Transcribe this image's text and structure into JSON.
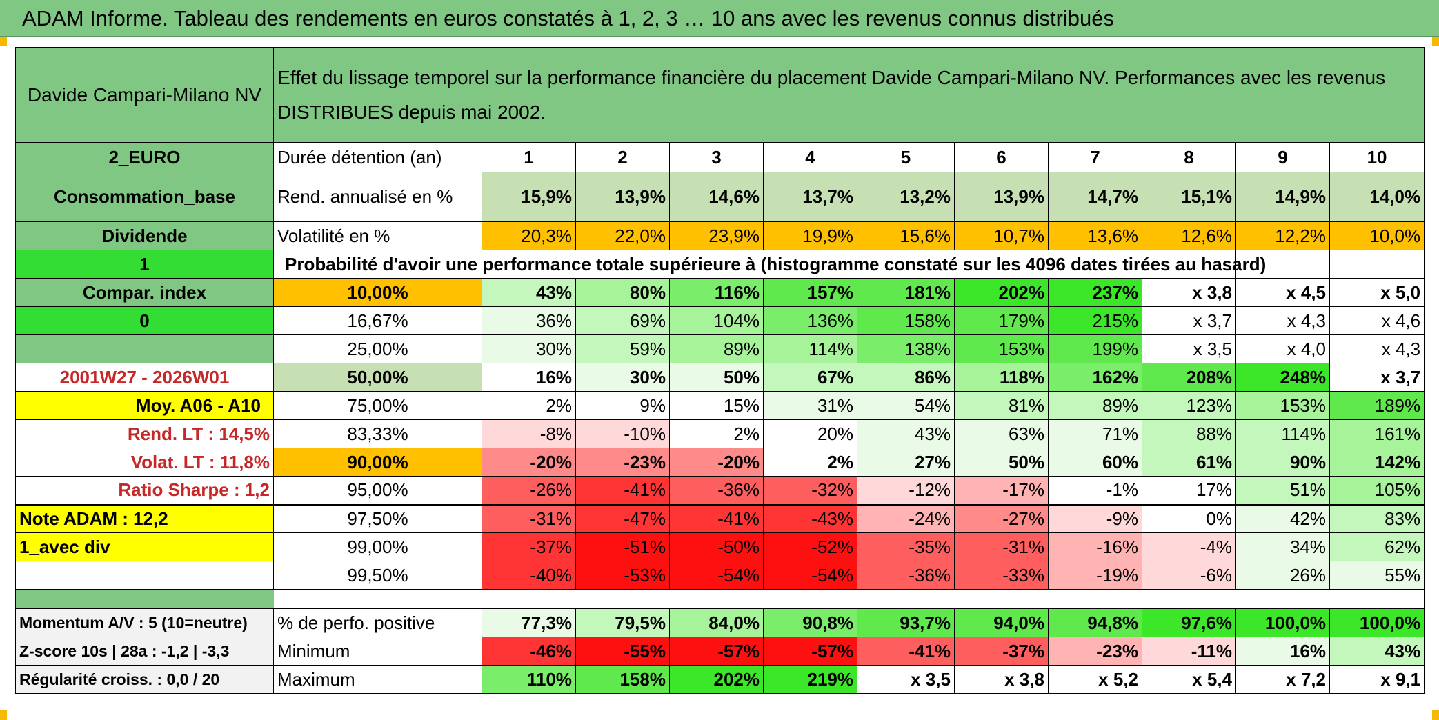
{
  "title": "ADAM Informe. Tableau des rendements en euros constatés à 1, 2, 3 … 10 ans avec les revenus connus distribués",
  "fund_name": "Davide Campari-Milano NV",
  "description": "Effet du lissage temporel sur la performance financière du placement Davide Campari-Milano NV. Performances avec les revenus DISTRIBUES depuis mai 2002.",
  "left": {
    "currency": "2_EURO",
    "consommation": "Consommation_base",
    "dividende": "Dividende",
    "one": "1",
    "compar_index": "Compar. index",
    "zero": "0",
    "period": "2001W27 - 2026W01",
    "moy": "Moy. A06 - A10",
    "rend_lt": "Rend. LT :   14,5%",
    "volat_lt": "Volat. LT :   11,8%",
    "sharpe": "Ratio Sharpe :    1,2",
    "note": "Note ADAM : 12,2",
    "avec_div": "1_avec div",
    "momentum": "Momentum A/V : 5 (10=neutre)",
    "zscore": "Z-score 10s | 28a : -1,2 | -3,3",
    "regularite": "Régularité croiss. : 0,0 / 20"
  },
  "labels": {
    "duree": "Durée détention (an)",
    "rend": "Rend. annualisé en %",
    "vol": "Volatilité en %",
    "proba": "Probabilité d'avoir une performance totale supérieure à (histogramme constaté sur les 4096 dates tirées au hasard)",
    "positive": "% de perfo. positive",
    "minimum": "Minimum",
    "maximum": "Maximum"
  },
  "years": [
    "1",
    "2",
    "3",
    "4",
    "5",
    "6",
    "7",
    "8",
    "9",
    "10"
  ],
  "rend": [
    "15,9%",
    "13,9%",
    "14,6%",
    "13,7%",
    "13,2%",
    "13,9%",
    "14,7%",
    "15,1%",
    "14,9%",
    "14,0%"
  ],
  "vol": [
    "20,3%",
    "22,0%",
    "23,9%",
    "19,9%",
    "15,6%",
    "10,7%",
    "13,6%",
    "12,6%",
    "12,2%",
    "10,0%"
  ],
  "quantiles": [
    {
      "p": "10,00%",
      "v": [
        "43%",
        "80%",
        "116%",
        "157%",
        "181%",
        "202%",
        "237%",
        "x 3,8",
        "x 4,5",
        "x 5,0"
      ]
    },
    {
      "p": "16,67%",
      "v": [
        "36%",
        "69%",
        "104%",
        "136%",
        "158%",
        "179%",
        "215%",
        "x 3,7",
        "x 4,3",
        "x 4,6"
      ]
    },
    {
      "p": "25,00%",
      "v": [
        "30%",
        "59%",
        "89%",
        "114%",
        "138%",
        "153%",
        "199%",
        "x 3,5",
        "x 4,0",
        "x 4,3"
      ]
    },
    {
      "p": "50,00%",
      "v": [
        "16%",
        "30%",
        "50%",
        "67%",
        "86%",
        "118%",
        "162%",
        "208%",
        "248%",
        "x 3,7"
      ]
    },
    {
      "p": "75,00%",
      "v": [
        "2%",
        "9%",
        "15%",
        "31%",
        "54%",
        "81%",
        "89%",
        "123%",
        "153%",
        "189%"
      ]
    },
    {
      "p": "83,33%",
      "v": [
        "-8%",
        "-10%",
        "2%",
        "20%",
        "43%",
        "63%",
        "71%",
        "88%",
        "114%",
        "161%"
      ]
    },
    {
      "p": "90,00%",
      "v": [
        "-20%",
        "-23%",
        "-20%",
        "2%",
        "27%",
        "50%",
        "60%",
        "61%",
        "90%",
        "142%"
      ]
    },
    {
      "p": "95,00%",
      "v": [
        "-26%",
        "-41%",
        "-36%",
        "-32%",
        "-12%",
        "-17%",
        "-1%",
        "17%",
        "51%",
        "105%"
      ]
    },
    {
      "p": "97,50%",
      "v": [
        "-31%",
        "-47%",
        "-41%",
        "-43%",
        "-24%",
        "-27%",
        "-9%",
        "0%",
        "42%",
        "83%"
      ]
    },
    {
      "p": "99,00%",
      "v": [
        "-37%",
        "-51%",
        "-50%",
        "-52%",
        "-35%",
        "-31%",
        "-16%",
        "-4%",
        "34%",
        "62%"
      ]
    },
    {
      "p": "99,50%",
      "v": [
        "-40%",
        "-53%",
        "-54%",
        "-54%",
        "-36%",
        "-33%",
        "-19%",
        "-6%",
        "26%",
        "55%"
      ]
    }
  ],
  "positive": [
    "77,3%",
    "79,5%",
    "84,0%",
    "90,8%",
    "93,7%",
    "94,0%",
    "94,8%",
    "97,6%",
    "100,0%",
    "100,0%"
  ],
  "minimum": [
    "-46%",
    "-55%",
    "-57%",
    "-57%",
    "-41%",
    "-37%",
    "-23%",
    "-11%",
    "16%",
    "43%"
  ],
  "maximum": [
    "110%",
    "158%",
    "202%",
    "219%",
    "x 3,5",
    "x 3,8",
    "x 5,2",
    "x 5,4",
    "x 7,2",
    "x 9,1"
  ]
}
